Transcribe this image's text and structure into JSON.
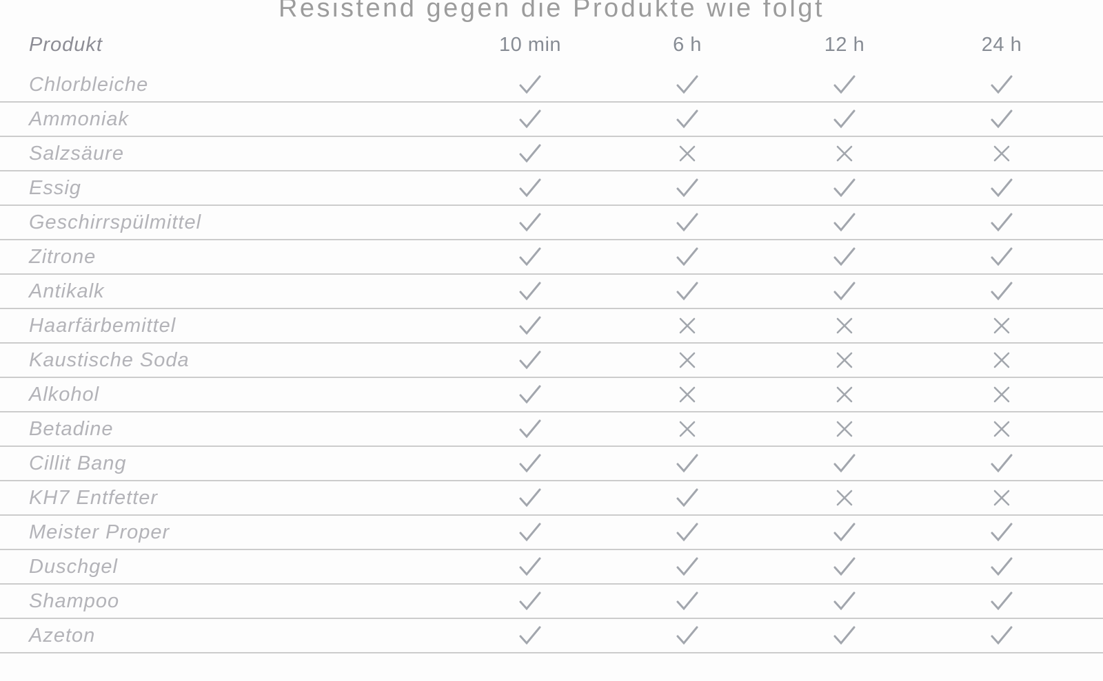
{
  "chart_data": {
    "type": "table",
    "title": "Resistend gegen die Produkte wie folgt",
    "columns": [
      "Produkt",
      "10 min",
      "6 h",
      "12 h",
      "24 h"
    ],
    "legend": {
      "check_meaning": "resistant",
      "cross_meaning": "not resistant"
    },
    "rows": [
      {
        "product": "Chlorbleiche",
        "results": [
          "check",
          "check",
          "check",
          "check"
        ]
      },
      {
        "product": "Ammoniak",
        "results": [
          "check",
          "check",
          "check",
          "check"
        ]
      },
      {
        "product": "Salzsäure",
        "results": [
          "check",
          "cross",
          "cross",
          "cross"
        ]
      },
      {
        "product": "Essig",
        "results": [
          "check",
          "check",
          "check",
          "check"
        ]
      },
      {
        "product": "Geschirrspülmittel",
        "results": [
          "check",
          "check",
          "check",
          "check"
        ]
      },
      {
        "product": "Zitrone",
        "results": [
          "check",
          "check",
          "check",
          "check"
        ]
      },
      {
        "product": "Antikalk",
        "results": [
          "check",
          "check",
          "check",
          "check"
        ]
      },
      {
        "product": "Haarfärbemittel",
        "results": [
          "check",
          "cross",
          "cross",
          "cross"
        ]
      },
      {
        "product": "Kaustische Soda",
        "results": [
          "check",
          "cross",
          "cross",
          "cross"
        ]
      },
      {
        "product": "Alkohol",
        "results": [
          "check",
          "cross",
          "cross",
          "cross"
        ]
      },
      {
        "product": "Betadine",
        "results": [
          "check",
          "cross",
          "cross",
          "cross"
        ]
      },
      {
        "product": "Cillit Bang",
        "results": [
          "check",
          "check",
          "check",
          "check"
        ]
      },
      {
        "product": "KH7 Entfetter",
        "results": [
          "check",
          "check",
          "cross",
          "cross"
        ]
      },
      {
        "product": "Meister Proper",
        "results": [
          "check",
          "check",
          "check",
          "check"
        ]
      },
      {
        "product": "Duschgel",
        "results": [
          "check",
          "check",
          "check",
          "check"
        ]
      },
      {
        "product": "Shampoo",
        "results": [
          "check",
          "check",
          "check",
          "check"
        ]
      },
      {
        "product": "Azeton",
        "results": [
          "check",
          "check",
          "check",
          "check"
        ]
      }
    ]
  },
  "colors": {
    "title_text": "#9c9c9c",
    "header_text": "#878c94",
    "product_text": "#b3b3b8",
    "mark_stroke": "#a2a6ad",
    "row_separator": "#cccccc",
    "background": "#fdfdfd"
  }
}
